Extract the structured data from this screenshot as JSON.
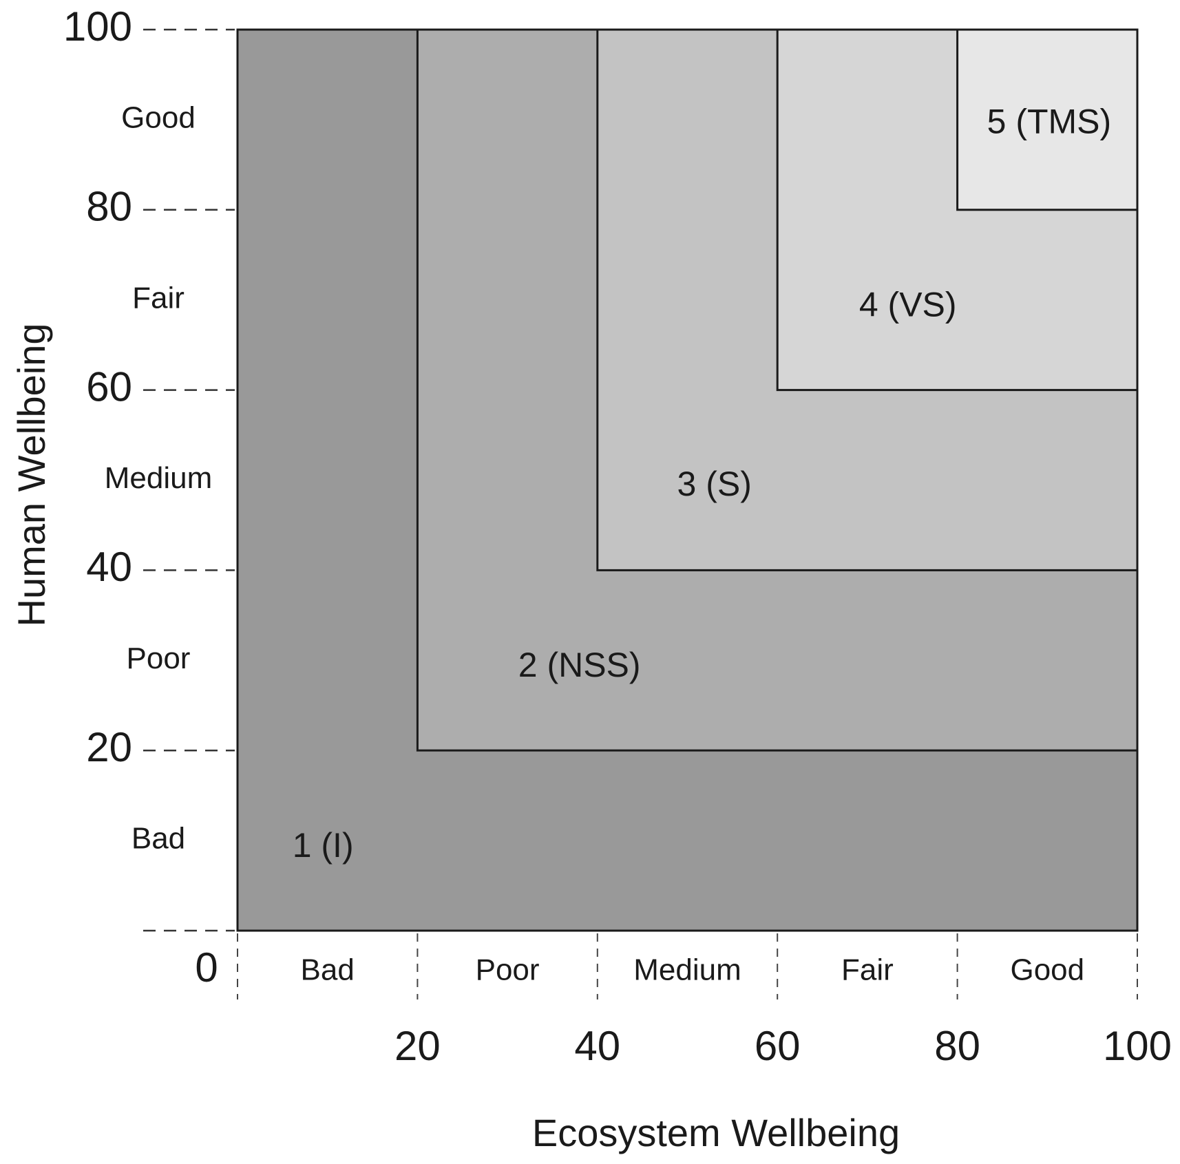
{
  "chart_data": {
    "type": "heatmap",
    "xlabel": "Ecosystem Wellbeing",
    "ylabel": "Human Wellbeing",
    "xlim": [
      0,
      100
    ],
    "ylim": [
      0,
      100
    ],
    "grid": false,
    "x_ticks": [
      "20",
      "40",
      "60",
      "80",
      "100"
    ],
    "x_tick_values": [
      20,
      40,
      60,
      80,
      100
    ],
    "origin_label": "0",
    "y_ticks": [
      "20",
      "40",
      "60",
      "80",
      "100"
    ],
    "y_tick_values": [
      20,
      40,
      60,
      80,
      100
    ],
    "x_bands": [
      {
        "label": "Bad",
        "range": [
          0,
          20
        ]
      },
      {
        "label": "Poor",
        "range": [
          20,
          40
        ]
      },
      {
        "label": "Medium",
        "range": [
          40,
          60
        ]
      },
      {
        "label": "Fair",
        "range": [
          60,
          80
        ]
      },
      {
        "label": "Good",
        "range": [
          80,
          100
        ]
      }
    ],
    "y_bands": [
      {
        "label": "Bad",
        "range": [
          0,
          20
        ]
      },
      {
        "label": "Poor",
        "range": [
          20,
          40
        ]
      },
      {
        "label": "Medium",
        "range": [
          40,
          60
        ]
      },
      {
        "label": "Fair",
        "range": [
          60,
          80
        ]
      },
      {
        "label": "Good",
        "range": [
          80,
          100
        ]
      }
    ],
    "zones": [
      {
        "label": "1 (I)",
        "min": 0,
        "color": "#999999"
      },
      {
        "label": "2 (NSS)",
        "min": 20,
        "color": "#adadad"
      },
      {
        "label": "3 (S)",
        "min": 40,
        "color": "#c3c3c3"
      },
      {
        "label": "4 (VS)",
        "min": 60,
        "color": "#d6d6d6"
      },
      {
        "label": "5 (TMS)",
        "min": 80,
        "color": "#e7e7e7"
      }
    ]
  }
}
